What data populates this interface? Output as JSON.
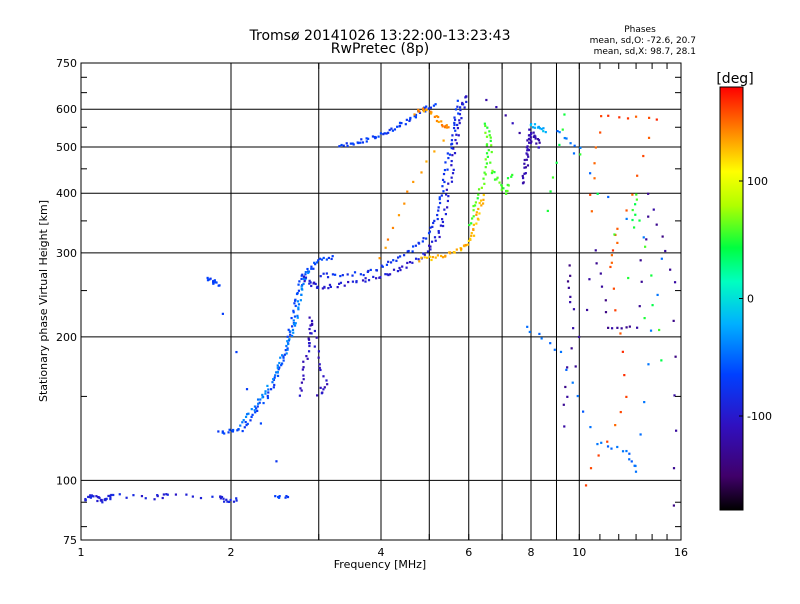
{
  "chart_data": {
    "type": "scatter",
    "title": "Tromsø 20141026 13:22:00-13:23:43",
    "subtitle": "RwPretec (8p)",
    "xlabel": "Frequency [MHz]",
    "ylabel": "Stationary phase Virtual Height [km]",
    "x_scale": "log",
    "y_scale": "log",
    "xlim": [
      1,
      16
    ],
    "ylim": [
      75,
      750
    ],
    "x_ticks": [
      1,
      2,
      4,
      6,
      8,
      10,
      16
    ],
    "x_tick_labels": [
      "1",
      "2",
      "4",
      "6",
      "8",
      "10",
      "16"
    ],
    "x_minor_gridlines": [
      3,
      5,
      7,
      9
    ],
    "y_ticks": [
      75,
      100,
      200,
      300,
      400,
      500,
      600,
      750
    ],
    "y_tick_labels": [
      "75",
      "100",
      "200",
      "300",
      "400",
      "500",
      "600",
      "750"
    ],
    "grid": true,
    "info": {
      "heading": "Phases",
      "line1": "mean, sd,O: -72.6, 20.7",
      "line2": "mean, sd,X:  98.7, 28.1"
    },
    "colorbar": {
      "label": "[deg]",
      "range": [
        -180,
        180
      ],
      "ticks": [
        100,
        0,
        -100
      ],
      "tick_labels": [
        "100",
        "0",
        "-100"
      ],
      "colormap": "rainbow (black-purple-blue-cyan-green-yellow-orange-red)"
    },
    "traces": [
      {
        "phase": -95,
        "points": [
          [
            1.02,
            91
          ],
          [
            1.05,
            93
          ],
          [
            1.08,
            92
          ],
          [
            1.1,
            90
          ],
          [
            1.13,
            92
          ],
          [
            1.16,
            93
          ],
          [
            1.4,
            92
          ],
          [
            1.5,
            93
          ],
          [
            1.9,
            92
          ],
          [
            1.95,
            91
          ],
          [
            2.05,
            91
          ]
        ]
      },
      {
        "phase": -70,
        "points": [
          [
            2.45,
            93
          ],
          [
            2.6,
            92
          ],
          [
            1.8,
            265
          ],
          [
            1.85,
            260
          ],
          [
            1.88,
            258
          ]
        ]
      },
      {
        "phase": -70,
        "points": [
          [
            1.9,
            126
          ],
          [
            2.0,
            127
          ],
          [
            2.1,
            128
          ],
          [
            2.2,
            135
          ],
          [
            2.3,
            145
          ],
          [
            2.4,
            155
          ],
          [
            2.5,
            168
          ],
          [
            2.55,
            180
          ],
          [
            2.6,
            195
          ],
          [
            2.65,
            215
          ],
          [
            2.7,
            235
          ],
          [
            2.75,
            255
          ],
          [
            2.8,
            270
          ],
          [
            2.9,
            280
          ],
          [
            3.0,
            290
          ],
          [
            3.2,
            295
          ]
        ]
      },
      {
        "phase": -40,
        "points": [
          [
            2.1,
            130
          ],
          [
            2.2,
            140
          ],
          [
            2.3,
            150
          ],
          [
            2.4,
            160
          ],
          [
            2.5,
            175
          ],
          [
            2.6,
            190
          ],
          [
            2.65,
            205
          ],
          [
            2.7,
            220
          ],
          [
            2.75,
            240
          ],
          [
            2.8,
            260
          ],
          [
            2.85,
            275
          ]
        ]
      },
      {
        "phase": -110,
        "points": [
          [
            2.75,
            150
          ],
          [
            2.8,
            170
          ],
          [
            2.85,
            190
          ],
          [
            2.9,
            205
          ],
          [
            2.9,
            220
          ],
          [
            3.0,
            180
          ],
          [
            3.1,
            160
          ],
          [
            3.0,
            150
          ]
        ]
      },
      {
        "phase": -100,
        "points": [
          [
            2.8,
            265
          ],
          [
            2.9,
            258
          ],
          [
            3.0,
            255
          ],
          [
            3.2,
            255
          ],
          [
            3.5,
            260
          ],
          [
            3.8,
            265
          ],
          [
            4.1,
            270
          ],
          [
            4.4,
            278
          ],
          [
            4.7,
            290
          ],
          [
            5.0,
            305
          ],
          [
            5.2,
            325
          ],
          [
            5.35,
            355
          ],
          [
            5.45,
            400
          ],
          [
            5.55,
            450
          ],
          [
            5.65,
            510
          ],
          [
            5.75,
            560
          ],
          [
            5.85,
            610
          ],
          [
            5.9,
            640
          ]
        ]
      },
      {
        "phase": -80,
        "points": [
          [
            3.0,
            270
          ],
          [
            3.3,
            268
          ],
          [
            3.7,
            272
          ],
          [
            4.0,
            280
          ],
          [
            4.3,
            290
          ],
          [
            4.6,
            305
          ],
          [
            4.9,
            320
          ],
          [
            5.1,
            345
          ],
          [
            5.25,
            380
          ],
          [
            5.35,
            420
          ],
          [
            5.45,
            470
          ],
          [
            5.55,
            520
          ],
          [
            5.65,
            570
          ],
          [
            5.75,
            620
          ]
        ]
      },
      {
        "phase": -75,
        "points": [
          [
            3.3,
            505
          ],
          [
            3.5,
            510
          ],
          [
            3.7,
            515
          ],
          [
            3.9,
            525
          ],
          [
            4.1,
            535
          ],
          [
            4.3,
            550
          ],
          [
            4.5,
            565
          ],
          [
            4.7,
            585
          ],
          [
            4.9,
            600
          ],
          [
            5.1,
            615
          ]
        ]
      },
      {
        "phase": 140,
        "points": [
          [
            4.7,
            590
          ],
          [
            4.9,
            600
          ],
          [
            5.1,
            580
          ],
          [
            5.3,
            560
          ],
          [
            5.5,
            545
          ],
          [
            4.5,
            400
          ],
          [
            4.0,
            290
          ]
        ]
      },
      {
        "phase": 130,
        "points": [
          [
            4.8,
            290
          ],
          [
            5.1,
            293
          ],
          [
            5.4,
            297
          ],
          [
            5.7,
            302
          ],
          [
            5.95,
            310
          ],
          [
            6.1,
            325
          ],
          [
            6.2,
            345
          ],
          [
            6.3,
            370
          ],
          [
            6.4,
            395
          ]
        ]
      },
      {
        "phase": 60,
        "points": [
          [
            6.0,
            340
          ],
          [
            6.2,
            380
          ],
          [
            6.4,
            420
          ],
          [
            6.5,
            470
          ],
          [
            6.6,
            520
          ],
          [
            6.5,
            560
          ],
          [
            6.7,
            450
          ],
          [
            6.9,
            420
          ],
          [
            7.1,
            400
          ],
          [
            7.3,
            440
          ]
        ]
      },
      {
        "phase": -120,
        "points": [
          [
            7.7,
            420
          ],
          [
            7.8,
            450
          ],
          [
            7.85,
            480
          ],
          [
            7.9,
            500
          ],
          [
            7.95,
            520
          ],
          [
            8.0,
            540
          ],
          [
            8.2,
            520
          ],
          [
            8.3,
            500
          ],
          [
            6.5,
            630
          ]
        ]
      },
      {
        "phase": -20,
        "points": [
          [
            8.0,
            560
          ],
          [
            8.3,
            550
          ],
          [
            8.5,
            540
          ]
        ]
      },
      {
        "phase": 160,
        "points": [
          [
            10.5,
            370
          ],
          [
            11,
            580
          ],
          [
            14.3,
            575
          ],
          [
            12,
            335
          ],
          [
            11.5,
            280
          ],
          [
            12.5,
            150
          ],
          [
            10.3,
            98
          ]
        ]
      },
      {
        "phase": 50,
        "points": [
          [
            8.7,
            370
          ],
          [
            9.3,
            590
          ],
          [
            14.7,
            180
          ],
          [
            13,
            400
          ],
          [
            12.8,
            340
          ]
        ]
      },
      {
        "phase": -130,
        "points": [
          [
            9.5,
            280
          ],
          [
            9.7,
            228
          ],
          [
            9.3,
            130
          ],
          [
            10.8,
            305
          ],
          [
            11.5,
            210
          ],
          [
            13.0,
            210
          ],
          [
            13.8,
            400
          ],
          [
            15.5,
            260
          ],
          [
            15.6,
            88
          ]
        ]
      },
      {
        "phase": -50,
        "points": [
          [
            7.8,
            210
          ],
          [
            9.2,
            185
          ],
          [
            10.8,
            120
          ],
          [
            12.5,
            115
          ],
          [
            13.0,
            105
          ],
          [
            14.6,
            290
          ],
          [
            9.0,
            540
          ],
          [
            10.0,
            500
          ]
        ]
      }
    ]
  }
}
